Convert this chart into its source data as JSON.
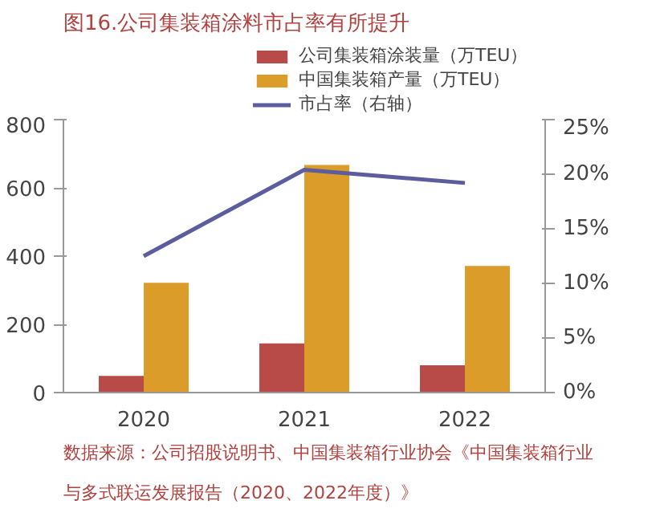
{
  "chart_data": {
    "type": "bar",
    "title": "图16.公司集装箱涂料市占率有所提升",
    "categories": [
      "2020",
      "2021",
      "2022"
    ],
    "series": [
      {
        "name": "公司集装箱涂装量（万TEU）",
        "color": "#b84a47",
        "values": [
          49,
          144,
          80
        ]
      },
      {
        "name": "中国集装箱产量（万TEU）",
        "color": "#dc9c2a",
        "values": [
          322,
          667,
          371
        ]
      },
      {
        "name": "市占率（右轴）",
        "type": "line",
        "axis": "y2",
        "color": "#5b5d9e",
        "values": [
          12.5,
          20.4,
          19.2
        ]
      }
    ],
    "ylim": [
      0,
      800
    ],
    "yticks": [
      0,
      200,
      400,
      600,
      800
    ],
    "y2lim": [
      0,
      25
    ],
    "y2ticks": [
      {
        "value": 0,
        "label": "0%"
      },
      {
        "value": 5,
        "label": "5%"
      },
      {
        "value": 10,
        "label": "10%"
      },
      {
        "value": 15,
        "label": "15%"
      },
      {
        "value": 20,
        "label": "20%"
      },
      {
        "value": 25,
        "label": "25%"
      }
    ],
    "grid": false,
    "legend": "top",
    "marker": "none",
    "line_style": "solid",
    "annotations": [
      "数据来源：公司招股说明书、中国集装箱行业协会《中国集装箱行业与多式联运发展报告（2020、2022年度）》"
    ]
  }
}
